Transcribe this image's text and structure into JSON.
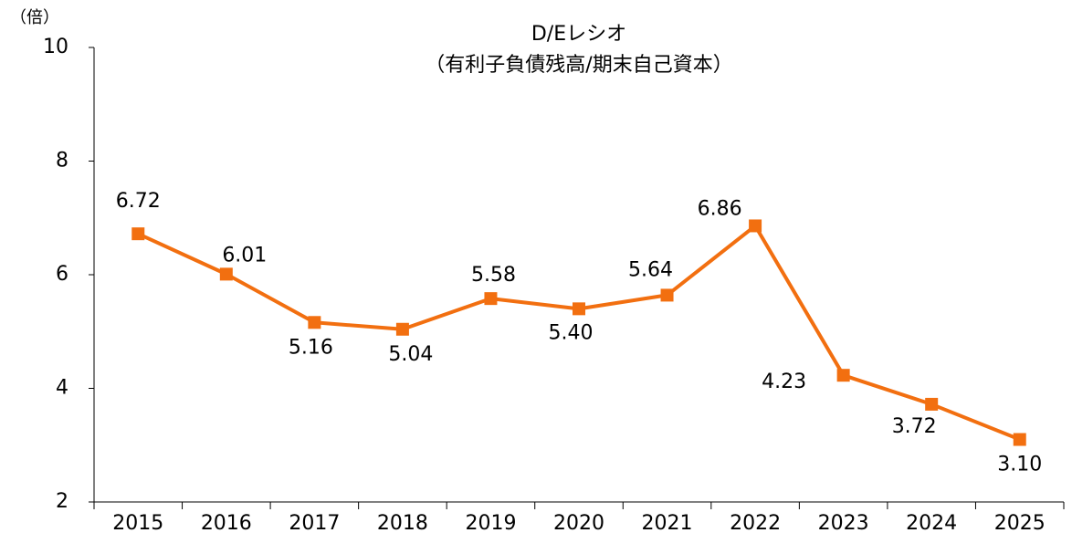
{
  "chart_data": {
    "type": "line",
    "title": "D/Eレシオ",
    "subtitle": "（有利子負債残高/期末自己資本）",
    "y_label": "（倍）",
    "categories": [
      "2015",
      "2016",
      "2017",
      "2018",
      "2019",
      "2020",
      "2021",
      "2022",
      "2023",
      "2024",
      "2025"
    ],
    "series": [
      {
        "name": "D/Eレシオ",
        "color": "#f26f10",
        "values": [
          6.72,
          6.01,
          5.16,
          5.04,
          5.58,
          5.4,
          5.64,
          6.86,
          4.23,
          3.72,
          3.1
        ],
        "value_labels": [
          "6.72",
          "6.01",
          "5.16",
          "5.04",
          "5.58",
          "5.40",
          "5.64",
          "6.86",
          "4.23",
          "3.72",
          "3.10"
        ]
      }
    ],
    "ylim": [
      2,
      10
    ],
    "yticks": [
      2,
      4,
      6,
      8,
      10
    ],
    "grid": false
  }
}
